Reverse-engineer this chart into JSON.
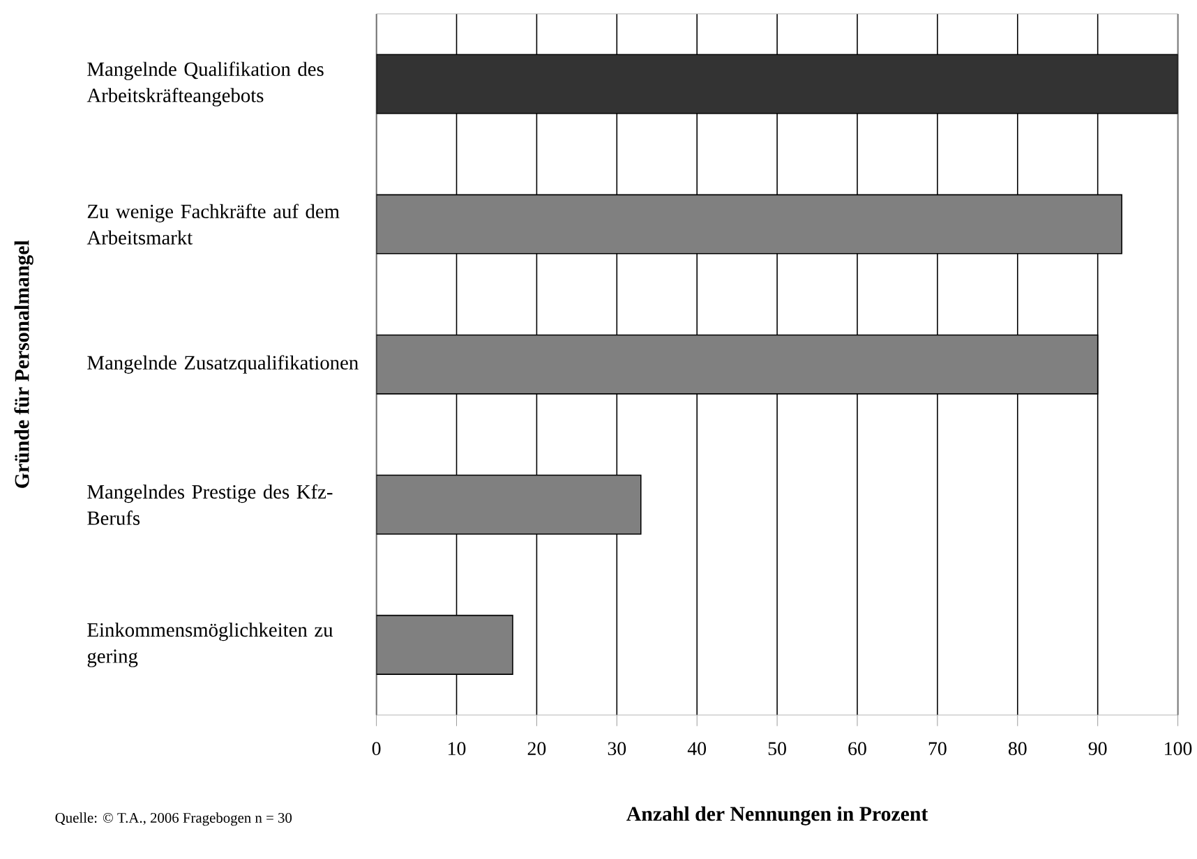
{
  "chart_data": {
    "type": "bar",
    "orientation": "horizontal",
    "ylabel": "Gründe für Personalmangel",
    "xlabel": "Anzahl der Nennungen in Prozent",
    "categories": [
      "Mangelnde Qualifikation des Arbeitskräfteangebots",
      "Zu wenige Fachkräfte auf dem Arbeitsmarkt",
      "Mangelnde Zusatzqualifikationen",
      "Mangelndes Prestige des Kfz-Berufs",
      "Einkommensmöglichkeiten zu gering"
    ],
    "values": [
      100,
      93,
      90,
      33,
      17
    ],
    "colors": [
      "#333333",
      "#808080",
      "#808080",
      "#808080",
      "#808080"
    ],
    "xlim": [
      0,
      100
    ],
    "xticks": [
      0,
      10,
      20,
      30,
      40,
      50,
      60,
      70,
      80,
      90,
      100
    ],
    "grid": "x",
    "annotations": [
      "Quelle: © T.A., 2006 Fragebogen n = 30"
    ]
  }
}
